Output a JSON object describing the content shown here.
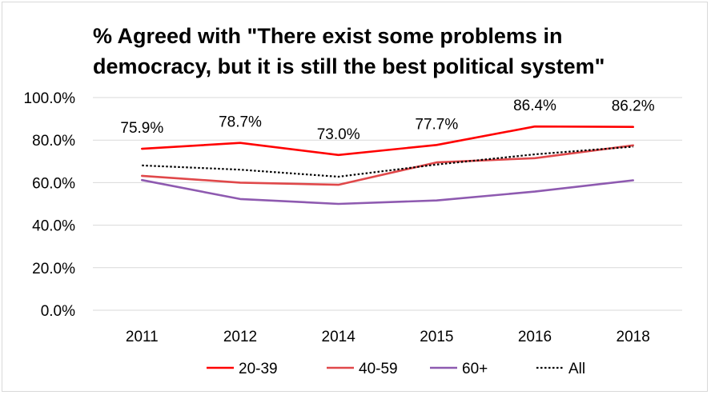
{
  "chart_data": {
    "type": "line",
    "title": "% Agreed with \"There exist some problems in\ndemocracy, but it is still the best political system\"",
    "categories": [
      "2011",
      "2012",
      "2014",
      "2015",
      "2016",
      "2018"
    ],
    "ylim": [
      0,
      100
    ],
    "yticks": [
      "0.0%",
      "20.0%",
      "40.0%",
      "60.0%",
      "80.0%",
      "100.0%"
    ],
    "grid": true,
    "legend_position": "bottom",
    "series": [
      {
        "name": "20-39",
        "values": [
          75.9,
          78.7,
          73.0,
          77.7,
          86.4,
          86.2
        ],
        "color": "#ff0000",
        "style": "solid",
        "labels": [
          "75.9%",
          "78.7%",
          "73.0%",
          "77.7%",
          "86.4%",
          "86.2%"
        ]
      },
      {
        "name": "40-59",
        "values": [
          63.2,
          60.0,
          59.0,
          69.5,
          71.5,
          77.5
        ],
        "color": "#e0484a",
        "style": "solid"
      },
      {
        "name": "60+",
        "values": [
          61.2,
          52.3,
          50.0,
          51.6,
          55.8,
          61.1
        ],
        "color": "#8e5ab0",
        "style": "solid"
      },
      {
        "name": "All",
        "values": [
          68.1,
          66.1,
          62.8,
          68.5,
          73.3,
          76.9
        ],
        "color": "#000000",
        "style": "dotted"
      }
    ]
  }
}
